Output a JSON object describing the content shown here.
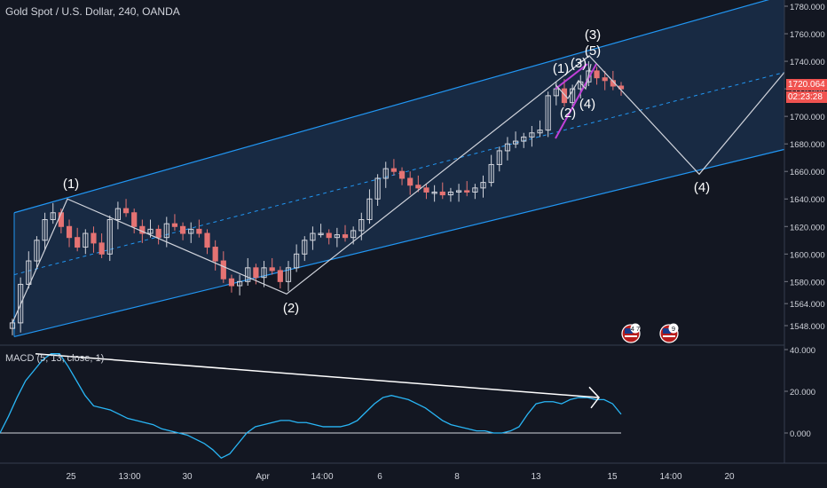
{
  "header": {
    "symbol_title": "Gold Spot / U.S. Dollar, 240, OANDA"
  },
  "macd_panel": {
    "label": "MACD (5, 13, close, 1)"
  },
  "price_badge": {
    "price": "1720.064",
    "countdown": "02:23:28"
  },
  "event_flags": [
    {
      "icon": "us-flag-icon",
      "count": "4 7"
    },
    {
      "icon": "us-flag-icon",
      "count": "9"
    }
  ],
  "colors": {
    "background": "#131722",
    "up_candle": "#d1d4dc",
    "down_candle": "#e57373",
    "channel": "#2196f3",
    "wave_line": "#d1d4dc",
    "sub_wave": "#c040d8",
    "macd_line": "#29b6f6",
    "price_badge": "#f05350"
  },
  "chart_data": [
    {
      "type": "candlestick",
      "title": "Gold Spot / U.S. Dollar, 240, OANDA",
      "x_ticks": [
        "25",
        "13:00",
        "30",
        "Apr",
        "14:00",
        "6",
        "8",
        "13",
        "15",
        "14:00",
        "20"
      ],
      "y_ticks": [
        "1780.000",
        "1760.000",
        "1740.000",
        "1720.000",
        "1700.000",
        "1680.000",
        "1660.000",
        "1640.000",
        "1620.000",
        "1600.000",
        "1580.000",
        "1564.000",
        "1548.000"
      ],
      "ylim": [
        1540,
        1788
      ],
      "last_price": 1720.064,
      "close_series": [
        1550,
        1578,
        1595,
        1610,
        1625,
        1630,
        1620,
        1612,
        1605,
        1615,
        1608,
        1600,
        1625,
        1633,
        1630,
        1620,
        1615,
        1618,
        1612,
        1622,
        1620,
        1615,
        1618,
        1615,
        1605,
        1595,
        1582,
        1577,
        1580,
        1590,
        1583,
        1590,
        1588,
        1580,
        1590,
        1600,
        1610,
        1615,
        1615,
        1612,
        1614,
        1612,
        1617,
        1625,
        1640,
        1655,
        1662,
        1660,
        1655,
        1650,
        1648,
        1645,
        1645,
        1643,
        1645,
        1646,
        1645,
        1648,
        1652,
        1665,
        1675,
        1680,
        1682,
        1685,
        1688,
        1690,
        1715,
        1720,
        1710,
        1720,
        1725,
        1733,
        1728,
        1726,
        1722,
        1720
      ],
      "wave_points": [
        {
          "label": "(1)",
          "price": 1640
        },
        {
          "label": "(2)",
          "price": 1571
        },
        {
          "label": "(3)",
          "price": 1744
        },
        {
          "label": "(4)",
          "price": 1658
        }
      ],
      "sub_wave_labels": [
        "(1)",
        "(2)",
        "(3)",
        "(4)",
        "(5)"
      ],
      "channel": {
        "upper_start": 1630,
        "upper_end": 1788,
        "lower_start": 1540,
        "lower_end": 1676
      }
    },
    {
      "type": "line",
      "title": "MACD (5, 13, close, 1)",
      "y_ticks": [
        "40.000",
        "20.000",
        "0.000"
      ],
      "ylim": [
        -14,
        40
      ],
      "series": [
        {
          "values": [
            0,
            8,
            17,
            25,
            30,
            35,
            38,
            38,
            32,
            25,
            18,
            13,
            12,
            11,
            9,
            7,
            6,
            5,
            4,
            2,
            1,
            0,
            -1,
            -3,
            -5,
            -8,
            -12,
            -10,
            -5,
            0,
            3,
            4,
            5,
            6,
            6,
            5,
            5,
            4,
            3,
            3,
            3,
            4,
            6,
            10,
            14,
            17,
            18,
            17,
            16,
            14,
            12,
            9,
            6,
            4,
            3,
            2,
            1,
            1,
            0,
            0,
            1,
            3,
            9,
            14,
            15,
            15,
            14,
            16,
            17,
            17,
            16,
            16,
            14,
            9
          ]
        }
      ]
    }
  ]
}
